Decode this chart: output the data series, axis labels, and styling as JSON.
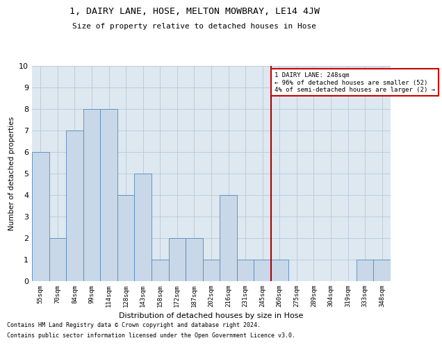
{
  "title": "1, DAIRY LANE, HOSE, MELTON MOWBRAY, LE14 4JW",
  "subtitle": "Size of property relative to detached houses in Hose",
  "xlabel": "Distribution of detached houses by size in Hose",
  "ylabel": "Number of detached properties",
  "footnote1": "Contains HM Land Registry data © Crown copyright and database right 2024.",
  "footnote2": "Contains public sector information licensed under the Open Government Licence v3.0.",
  "categories": [
    "55sqm",
    "70sqm",
    "84sqm",
    "99sqm",
    "114sqm",
    "128sqm",
    "143sqm",
    "158sqm",
    "172sqm",
    "187sqm",
    "202sqm",
    "216sqm",
    "231sqm",
    "245sqm",
    "260sqm",
    "275sqm",
    "289sqm",
    "304sqm",
    "319sqm",
    "333sqm",
    "348sqm"
  ],
  "values": [
    6,
    2,
    7,
    8,
    8,
    4,
    5,
    1,
    2,
    2,
    1,
    4,
    1,
    1,
    1,
    0,
    0,
    0,
    0,
    1,
    1
  ],
  "bar_color": "#c8d8e8",
  "bar_edge_color": "#5588bb",
  "grid_color": "#b8c8d8",
  "background_color": "#dde8f0",
  "vline_index": 13,
  "vline_color": "#aa0000",
  "annotation_text": "1 DAIRY LANE: 248sqm\n← 96% of detached houses are smaller (52)\n4% of semi-detached houses are larger (2) →",
  "annotation_box_color": "#cc0000",
  "ylim": [
    0,
    10
  ],
  "yticks": [
    0,
    1,
    2,
    3,
    4,
    5,
    6,
    7,
    8,
    9,
    10
  ]
}
